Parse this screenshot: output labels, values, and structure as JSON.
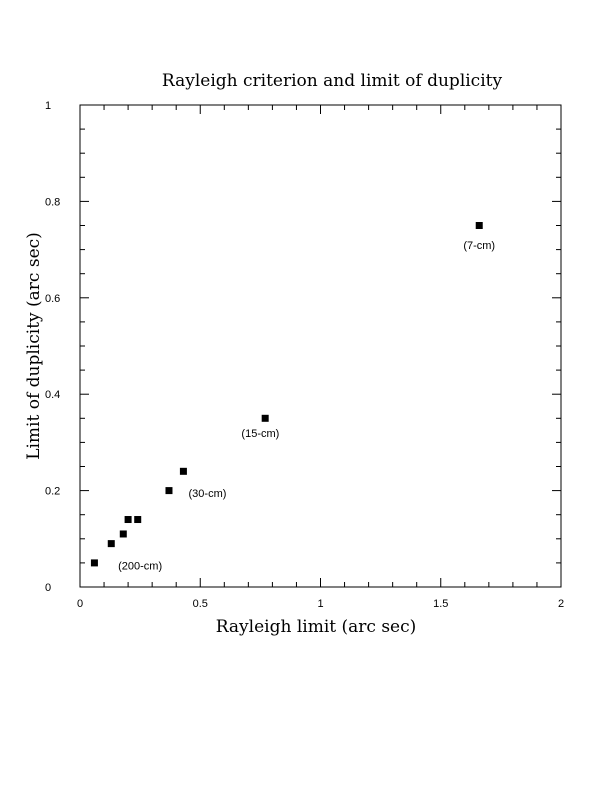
{
  "chart_data": {
    "type": "scatter",
    "title": "Rayleigh criterion and limit of duplicity",
    "xlabel": "Rayleigh limit (arc sec)",
    "ylabel": "Limit of duplicity (arc sec)",
    "xlim": [
      0,
      2
    ],
    "ylim": [
      0,
      1
    ],
    "x_ticks": [
      "0",
      "0.5",
      "1",
      "1.5",
      "2"
    ],
    "y_ticks": [
      "0",
      "0.2",
      "0.4",
      "0.6",
      "0.8",
      "1"
    ],
    "grid": false,
    "marker": "square",
    "color": "#000000",
    "points": [
      {
        "x": 0.06,
        "y": 0.05
      },
      {
        "x": 0.13,
        "y": 0.09
      },
      {
        "x": 0.18,
        "y": 0.11
      },
      {
        "x": 0.2,
        "y": 0.14
      },
      {
        "x": 0.24,
        "y": 0.14
      },
      {
        "x": 0.37,
        "y": 0.2
      },
      {
        "x": 0.43,
        "y": 0.24
      },
      {
        "x": 0.77,
        "y": 0.35
      },
      {
        "x": 1.66,
        "y": 0.75
      }
    ],
    "annotations": [
      {
        "text": "(200-cm)",
        "x": 0.25,
        "y": 0.045
      },
      {
        "text": "(30-cm)",
        "x": 0.53,
        "y": 0.195
      },
      {
        "text": "(15-cm)",
        "x": 0.75,
        "y": 0.32
      },
      {
        "text": "(7-cm)",
        "x": 1.66,
        "y": 0.71
      }
    ]
  }
}
